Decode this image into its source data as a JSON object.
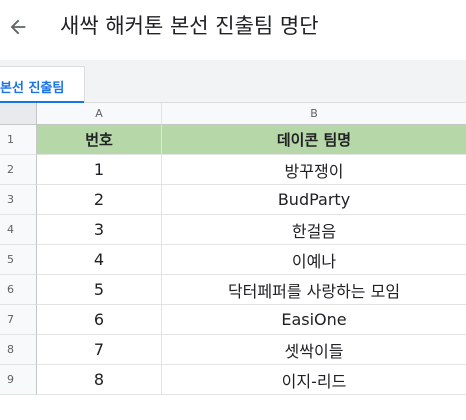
{
  "appbar": {
    "title": "새싹 해커톤 본선 진출팀 명단"
  },
  "sheet_tab": {
    "label": "본선 진출팀"
  },
  "columns": [
    "A",
    "B"
  ],
  "table": {
    "headers": [
      "번호",
      "데이콘 팀명"
    ],
    "rows": [
      {
        "num": "1",
        "team": "방꾸쟁이"
      },
      {
        "num": "2",
        "team": "BudParty"
      },
      {
        "num": "3",
        "team": "한걸음"
      },
      {
        "num": "4",
        "team": "이예나"
      },
      {
        "num": "5",
        "team": "닥터페퍼를 사랑하는 모임"
      },
      {
        "num": "6",
        "team": "EasiOne"
      },
      {
        "num": "7",
        "team": "셋싹이들"
      },
      {
        "num": "8",
        "team": "이지-리드"
      }
    ]
  },
  "row_numbers": [
    "1",
    "2",
    "3",
    "4",
    "5",
    "6",
    "7",
    "8",
    "9"
  ],
  "colors": {
    "header_fill": "#b6d7a8",
    "accent": "#1a73e8"
  },
  "icons": {
    "back": "arrow-left-icon"
  }
}
